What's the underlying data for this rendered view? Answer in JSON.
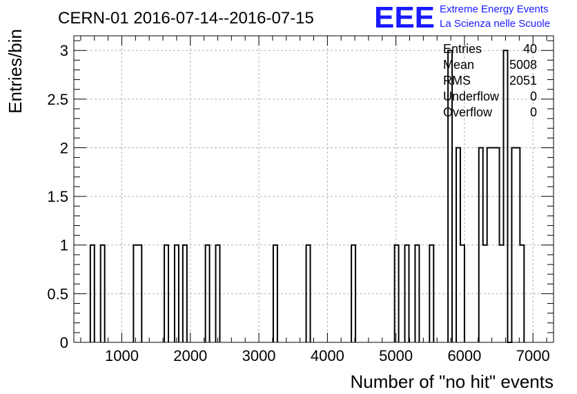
{
  "chart_data": {
    "type": "bar",
    "title": "CERN-01 2016-07-14--2016-07-15",
    "xlabel": "Number of \"no hit\" events",
    "ylabel": "Entries/bin",
    "xlim": [
      300,
      7300
    ],
    "ylim": [
      0,
      3.15
    ],
    "x_ticks": [
      1000,
      2000,
      3000,
      4000,
      5000,
      6000,
      7000
    ],
    "y_ticks": [
      0,
      0.5,
      1,
      1.5,
      2,
      2.5,
      3
    ],
    "x_tick_labels": [
      "1000",
      "2000",
      "3000",
      "4000",
      "5000",
      "6000",
      "7000"
    ],
    "y_tick_labels": [
      "0",
      "0.5",
      "1",
      "1.5",
      "2",
      "2.5",
      "3"
    ],
    "grid": true,
    "bin_width": 60,
    "series": [
      {
        "bins": [
          {
            "x0": 540,
            "x1": 600,
            "y": 1
          },
          {
            "x0": 690,
            "x1": 750,
            "y": 1
          },
          {
            "x0": 1170,
            "x1": 1230,
            "y": 1
          },
          {
            "x0": 1230,
            "x1": 1290,
            "y": 1
          },
          {
            "x0": 1620,
            "x1": 1680,
            "y": 1
          },
          {
            "x0": 1770,
            "x1": 1830,
            "y": 1
          },
          {
            "x0": 1890,
            "x1": 1950,
            "y": 1
          },
          {
            "x0": 2220,
            "x1": 2280,
            "y": 1
          },
          {
            "x0": 2370,
            "x1": 2430,
            "y": 1
          },
          {
            "x0": 3210,
            "x1": 3270,
            "y": 1
          },
          {
            "x0": 3690,
            "x1": 3750,
            "y": 1
          },
          {
            "x0": 4350,
            "x1": 4410,
            "y": 1
          },
          {
            "x0": 4980,
            "x1": 5040,
            "y": 1
          },
          {
            "x0": 5130,
            "x1": 5190,
            "y": 1
          },
          {
            "x0": 5280,
            "x1": 5340,
            "y": 1
          },
          {
            "x0": 5490,
            "x1": 5550,
            "y": 1
          },
          {
            "x0": 5760,
            "x1": 5820,
            "y": 3
          },
          {
            "x0": 5880,
            "x1": 5940,
            "y": 2
          },
          {
            "x0": 5940,
            "x1": 6000,
            "y": 1
          },
          {
            "x0": 6210,
            "x1": 6270,
            "y": 2
          },
          {
            "x0": 6270,
            "x1": 6330,
            "y": 1
          },
          {
            "x0": 6330,
            "x1": 6390,
            "y": 2
          },
          {
            "x0": 6390,
            "x1": 6450,
            "y": 2
          },
          {
            "x0": 6450,
            "x1": 6510,
            "y": 2
          },
          {
            "x0": 6510,
            "x1": 6570,
            "y": 1
          },
          {
            "x0": 6570,
            "x1": 6630,
            "y": 3
          },
          {
            "x0": 6630,
            "x1": 6690,
            "y": 0
          },
          {
            "x0": 6690,
            "x1": 6750,
            "y": 2
          },
          {
            "x0": 6750,
            "x1": 6810,
            "y": 2
          },
          {
            "x0": 6810,
            "x1": 6870,
            "y": 1
          }
        ]
      }
    ]
  },
  "stats": [
    {
      "label": "Entries",
      "value": "40"
    },
    {
      "label": "Mean",
      "value": "5008"
    },
    {
      "label": "RMS",
      "value": "2051"
    },
    {
      "label": "Underflow",
      "value": "0"
    },
    {
      "label": "Overflow",
      "value": "0"
    }
  ],
  "logo": {
    "mark": "EEE",
    "line1": "Extreme Energy Events",
    "line2": "La Scienza nelle Scuole",
    "color": "#1a1aff"
  }
}
